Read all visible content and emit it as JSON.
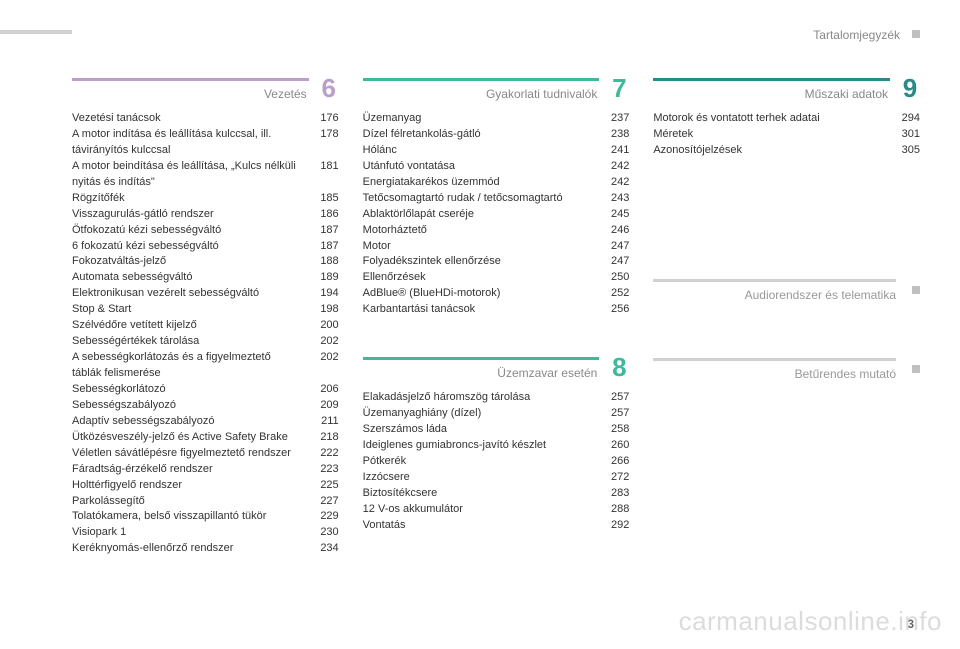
{
  "header": {
    "title": "Tartalomjegyzék"
  },
  "pageNumber": "3",
  "watermark": "carmanualsonline.info",
  "sections": [
    {
      "title": "Vezetés",
      "number": "6",
      "barColor": "#b99fc9",
      "numColor": "#b99fc9",
      "items": [
        {
          "label": "Vezetési tanácsok",
          "page": "176"
        },
        {
          "label": "A motor indítása és leállítása kulccsal, ill. távirányítós kulccsal",
          "page": "178"
        },
        {
          "label": "A motor beindítása és leállítása, „Kulcs nélküli nyitás és indítás\"",
          "page": "181"
        },
        {
          "label": "Rögzítőfék",
          "page": "185"
        },
        {
          "label": "Visszagurulás-gátló rendszer",
          "page": "186"
        },
        {
          "label": "Ötfokozatú kézi sebességváltó",
          "page": "187"
        },
        {
          "label": "6 fokozatú kézi sebességváltó",
          "page": "187"
        },
        {
          "label": "Fokozatváltás-jelző",
          "page": "188"
        },
        {
          "label": "Automata sebességváltó",
          "page": "189"
        },
        {
          "label": "Elektronikusan vezérelt sebességváltó",
          "page": "194"
        },
        {
          "label": "Stop & Start",
          "page": "198"
        },
        {
          "label": "Szélvédőre vetített kijelző",
          "page": "200"
        },
        {
          "label": "Sebességértékek tárolása",
          "page": "202"
        },
        {
          "label": "A sebességkorlátozás és a figyelmeztető táblák felismerése",
          "page": "202"
        },
        {
          "label": "Sebességkorlátozó",
          "page": "206"
        },
        {
          "label": "Sebességszabályozó",
          "page": "209"
        },
        {
          "label": "Adaptív sebességszabályozó",
          "page": "211"
        },
        {
          "label": "Ütközésveszély-jelző és Active Safety Brake",
          "page": "218"
        },
        {
          "label": "Véletlen sávátlépésre figyelmeztető rendszer",
          "page": "222"
        },
        {
          "label": "Fáradtság-érzékelő rendszer",
          "page": "223"
        },
        {
          "label": "Holttérfigyelő rendszer",
          "page": "225"
        },
        {
          "label": "Parkolássegítő",
          "page": "227"
        },
        {
          "label": "Tolatókamera, belső visszapillantó tükör",
          "page": "229"
        },
        {
          "label": "Visiopark 1",
          "page": "230"
        },
        {
          "label": "Keréknyomás-ellenőrző rendszer",
          "page": "234"
        }
      ]
    },
    {
      "title": "Gyakorlati tudnivalók",
      "number": "7",
      "barColor": "#3fb89b",
      "numColor": "#3fb89b",
      "items": [
        {
          "label": "Üzemanyag",
          "page": "237"
        },
        {
          "label": "Dízel félretankolás-gátló",
          "page": "238"
        },
        {
          "label": "Hólánc",
          "page": "241"
        },
        {
          "label": "Utánfutó vontatása",
          "page": "242"
        },
        {
          "label": "Energiatakarékos üzemmód",
          "page": "242"
        },
        {
          "label": "Tetőcsomagtartó rudak / tetőcsomagtartó",
          "page": "243"
        },
        {
          "label": "Ablaktörlőlapát cseréje",
          "page": "245"
        },
        {
          "label": "Motorháztető",
          "page": "246"
        },
        {
          "label": "Motor",
          "page": "247"
        },
        {
          "label": "Folyadékszintek ellenőrzése",
          "page": "247"
        },
        {
          "label": "Ellenőrzések",
          "page": "250"
        },
        {
          "label": "AdBlue® (BlueHDi-motorok)",
          "page": "252"
        },
        {
          "label": "Karbantartási tanácsok",
          "page": "256"
        }
      ]
    },
    {
      "title": "Üzemzavar esetén",
      "number": "8",
      "barColor": "#3fb89b",
      "numColor": "#3fb89b",
      "items": [
        {
          "label": "Elakadásjelző háromszög tárolása",
          "page": "257"
        },
        {
          "label": "Üzemanyaghiány (dízel)",
          "page": "257"
        },
        {
          "label": "Szerszámos láda",
          "page": "258"
        },
        {
          "label": "Ideiglenes gumiabroncs-javító készlet",
          "page": "260"
        },
        {
          "label": "Pótkerék",
          "page": "266"
        },
        {
          "label": "Izzócsere",
          "page": "272"
        },
        {
          "label": "Biztosítékcsere",
          "page": "283"
        },
        {
          "label": "12 V-os akkumulátor",
          "page": "288"
        },
        {
          "label": "Vontatás",
          "page": "292"
        }
      ]
    },
    {
      "title": "Műszaki adatok",
      "number": "9",
      "barColor": "#2b8a88",
      "numColor": "#2b8a88",
      "items": [
        {
          "label": "Motorok és vontatott terhek adatai",
          "page": "294"
        },
        {
          "label": "Méretek",
          "page": "301"
        },
        {
          "label": "Azonosítójelzések",
          "page": "305"
        }
      ]
    }
  ],
  "sideSections": [
    {
      "title": "Audiorendszer és telematika"
    },
    {
      "title": "Betűrendes mutató"
    }
  ]
}
